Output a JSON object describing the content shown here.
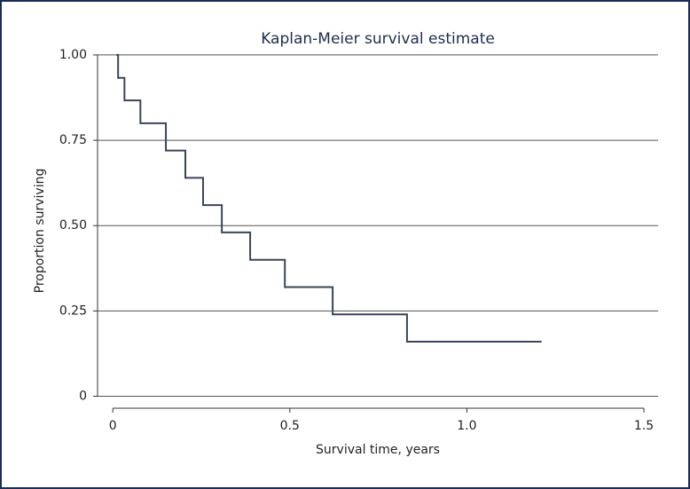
{
  "chart_data": {
    "type": "line",
    "step": "post",
    "title": "Kaplan-Meier survival estimate",
    "x_label": "Survival time, years",
    "y_label": "Proportion surviving",
    "series": [
      {
        "color": "#3b4658",
        "x": [
          0.01,
          0.015,
          0.033,
          0.078,
          0.15,
          0.205,
          0.255,
          0.308,
          0.388,
          0.486,
          0.621,
          0.831,
          1.211
        ],
        "values": [
          1,
          0.933,
          0.867,
          0.8,
          0.72,
          0.64,
          0.56,
          0.48,
          0.4,
          0.32,
          0.24,
          0.16,
          0.16
        ]
      }
    ],
    "xlim": [
      -0.043,
      1.54
    ],
    "xticks": [
      0,
      0.5,
      {
        "value": 1,
        "label": "1.0"
      },
      1.5
    ],
    "ylim": [
      -0.035,
      1.07
    ],
    "yticks": [
      0,
      {
        "value": 0.25,
        "label": "0.25"
      },
      {
        "value": 0.5,
        "label": "0.50"
      },
      {
        "value": 0.75,
        "label": "0.75"
      },
      {
        "value": 1,
        "label": "1.00"
      }
    ],
    "grid": true
  }
}
